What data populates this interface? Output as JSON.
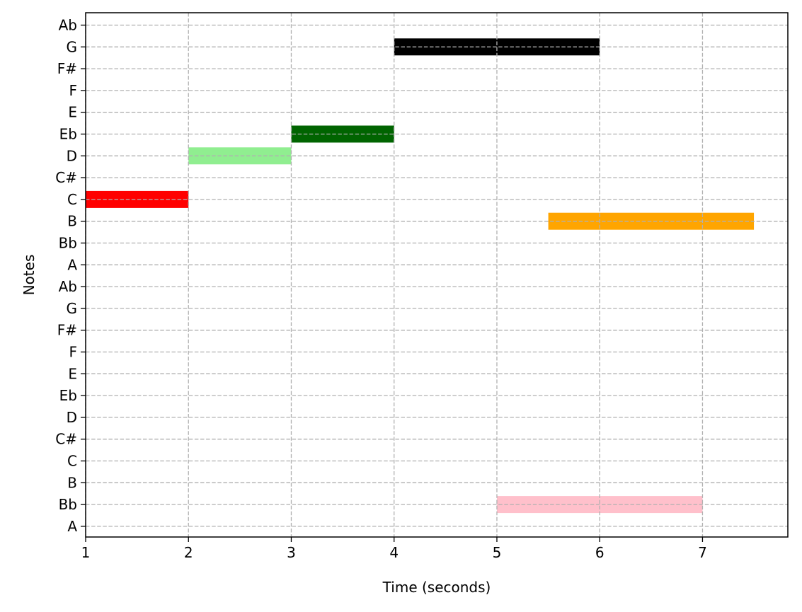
{
  "chart_data": {
    "type": "bar",
    "orientation": "horizontal",
    "title": "",
    "xlabel": "Time (seconds)",
    "ylabel": "Notes",
    "xlim": [
      1,
      7.83
    ],
    "x_ticks": [
      1,
      2,
      3,
      4,
      5,
      6,
      7
    ],
    "y_categories": [
      "A",
      "Bb",
      "B",
      "C",
      "C#",
      "D",
      "Eb",
      "E",
      "F",
      "F#",
      "G",
      "Ab",
      "A",
      "Bb",
      "B",
      "C",
      "C#",
      "D",
      "Eb",
      "E",
      "F",
      "F#",
      "G",
      "Ab"
    ],
    "grid": true,
    "notes": [
      {
        "note": "C",
        "y_index": 15,
        "start": 1,
        "end": 2,
        "color": "#ff0000"
      },
      {
        "note": "D",
        "y_index": 17,
        "start": 2,
        "end": 3,
        "color": "#90ee90"
      },
      {
        "note": "Eb",
        "y_index": 18,
        "start": 3,
        "end": 4,
        "color": "#006400"
      },
      {
        "note": "G",
        "y_index": 22,
        "start": 4,
        "end": 6,
        "color": "#000000"
      },
      {
        "note": "Bb",
        "y_index": 1,
        "start": 5,
        "end": 7,
        "color": "#ffc0cb"
      },
      {
        "note": "B",
        "y_index": 14,
        "start": 5.5,
        "end": 7.5,
        "color": "#ffa500"
      }
    ]
  }
}
